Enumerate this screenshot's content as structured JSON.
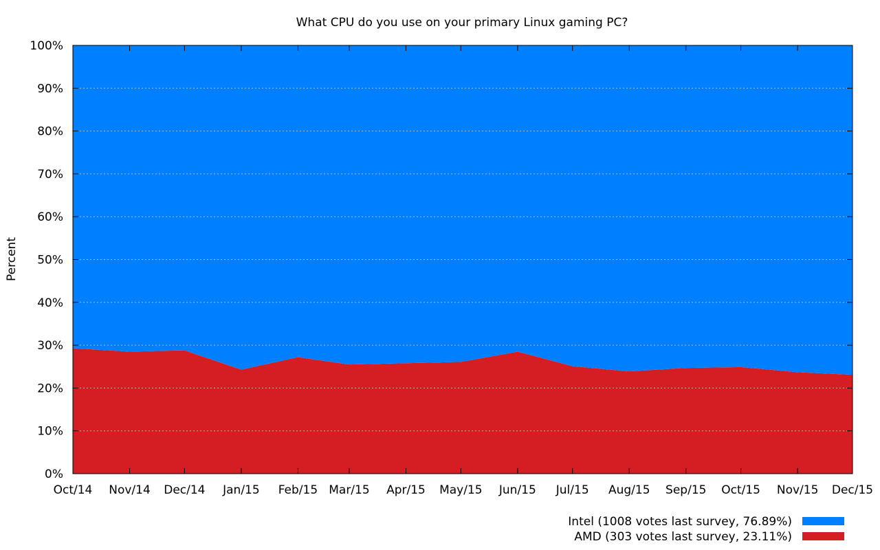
{
  "chart_data": {
    "type": "area",
    "stacked": true,
    "title": "What CPU do you use on your primary Linux gaming PC?",
    "ylabel": "Percent",
    "xlabel": "",
    "ylim": [
      0,
      100
    ],
    "y_ticks": [
      "0%",
      "10%",
      "20%",
      "30%",
      "40%",
      "50%",
      "60%",
      "70%",
      "80%",
      "90%",
      "100%"
    ],
    "categories": [
      "Oct/14",
      "Nov/14",
      "Dec/14",
      "Jan/15",
      "Feb/15",
      "Mar/15",
      "Apr/15",
      "May/15",
      "Jun/15",
      "Jul/15",
      "Aug/15",
      "Sep/15",
      "Oct/15",
      "Nov/15",
      "Dec/15"
    ],
    "x_dates": [
      "2014-10-01",
      "2014-11-01",
      "2014-12-01",
      "2015-01-01",
      "2015-02-01",
      "2015-03-01",
      "2015-04-01",
      "2015-05-01",
      "2015-06-01",
      "2015-07-01",
      "2015-08-01",
      "2015-09-01",
      "2015-10-01",
      "2015-11-01",
      "2015-12-01"
    ],
    "grid": true,
    "legend_position": "bottom-right",
    "series": [
      {
        "name": "AMD (303 votes last survey, 23.11%)",
        "color": "#d51e23",
        "values": [
          29.3,
          28.5,
          28.8,
          24.3,
          27.2,
          25.5,
          25.8,
          26.1,
          28.5,
          25.1,
          23.9,
          24.7,
          24.9,
          23.7,
          23.1
        ]
      },
      {
        "name": "Intel (1008 votes last survey, 76.89%)",
        "color": "#0080ff",
        "values": [
          70.7,
          71.5,
          71.2,
          75.7,
          72.8,
          74.5,
          74.2,
          73.9,
          71.5,
          74.9,
          76.1,
          75.3,
          75.1,
          76.3,
          76.9
        ]
      }
    ],
    "legend_order": [
      "Intel (1008 votes last survey, 76.89%)",
      "AMD (303 votes last survey, 23.11%)"
    ]
  }
}
